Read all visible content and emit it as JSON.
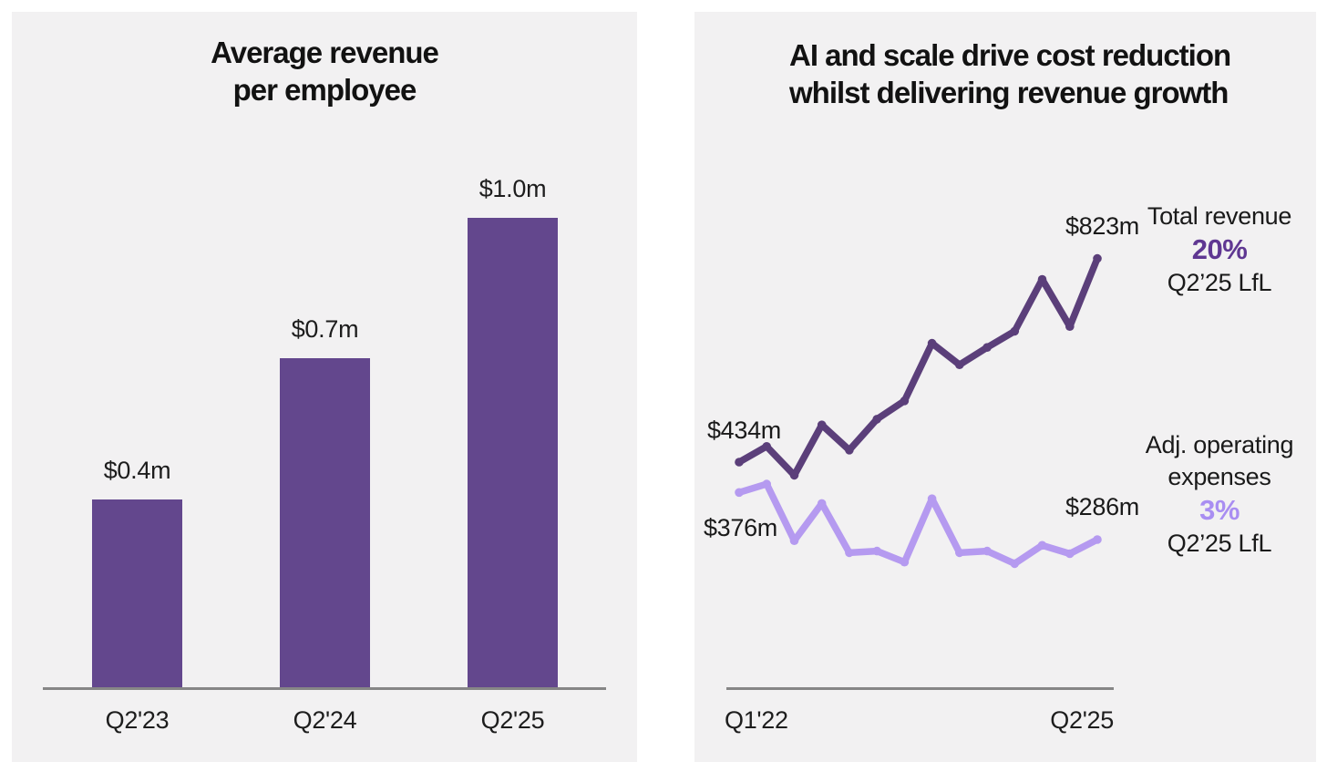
{
  "left_chart": {
    "title": "Average revenue\nper employee",
    "bar_value_labels": [
      "$0.4m",
      "$0.7m",
      "$1.0m"
    ],
    "x_tick_labels": [
      "Q2'23",
      "Q2'24",
      "Q2'25"
    ]
  },
  "right_chart": {
    "title": "AI and scale drive cost reduction\nwhilst delivering revenue growth",
    "x_tick_labels": [
      "Q1'22",
      "Q2'25"
    ],
    "revenue": {
      "start_label": "$434m",
      "end_label": "$823m",
      "label": "Total revenue",
      "pct": "20%",
      "period": "Q2’25 LfL"
    },
    "opex": {
      "start_label": "$376m",
      "end_label": "$286m",
      "label": "Adj. operating\nexpenses",
      "pct": "3%",
      "period": "Q2’25 LfL"
    }
  },
  "colors": {
    "page_background": "#ffffff",
    "panel_background": "#f2f1f2",
    "bar_fill": "#63478d",
    "revenue_line": "#5b3f7a",
    "opex_line": "#b59af0",
    "revenue_accent": "#5f3792",
    "opex_accent": "#a98ef2",
    "axis": "#868686",
    "text": "#141414"
  },
  "chart_data": [
    {
      "type": "bar",
      "title": "Average revenue per employee",
      "categories": [
        "Q2'23",
        "Q2'24",
        "Q2'25"
      ],
      "values": [
        0.4,
        0.7,
        1.0
      ],
      "unit": "$m per employee",
      "data_labels": [
        "$0.4m",
        "$0.7m",
        "$1.0m"
      ],
      "xlabel": "",
      "ylabel": "",
      "ylim": [
        0,
        1.1
      ],
      "grid": false,
      "legend": false,
      "bar_color": "#63478d"
    },
    {
      "type": "line",
      "title": "AI and scale drive cost reduction whilst delivering revenue growth",
      "x": [
        "Q1'22",
        "Q2'22",
        "Q3'22",
        "Q4'22",
        "Q1'23",
        "Q2'23",
        "Q3'23",
        "Q4'23",
        "Q1'24",
        "Q2'24",
        "Q3'24",
        "Q4'24",
        "Q1'25",
        "Q2'25"
      ],
      "x_ticks_shown": [
        "Q1'22",
        "Q2'25"
      ],
      "unit": "$m",
      "series": [
        {
          "name": "Total revenue",
          "color": "#5b3f7a",
          "values": [
            434,
            464,
            409,
            505,
            457,
            516,
            551,
            661,
            620,
            653,
            684,
            783,
            693,
            823
          ],
          "start_label": "$434m",
          "end_label": "$823m",
          "growth_annotation": "20% Q2’25 LfL"
        },
        {
          "name": "Adj. operating expenses",
          "color": "#b59af0",
          "values": [
            376,
            392,
            284,
            355,
            261,
            264,
            243,
            364,
            261,
            264,
            240,
            275,
            259,
            286
          ],
          "start_label": "$376m",
          "end_label": "$286m",
          "growth_annotation": "3% Q2’25 LfL"
        }
      ],
      "note": "series values between labeled endpoints are estimated from pixel positions",
      "grid": false,
      "legend_position": "right-annotations"
    }
  ]
}
